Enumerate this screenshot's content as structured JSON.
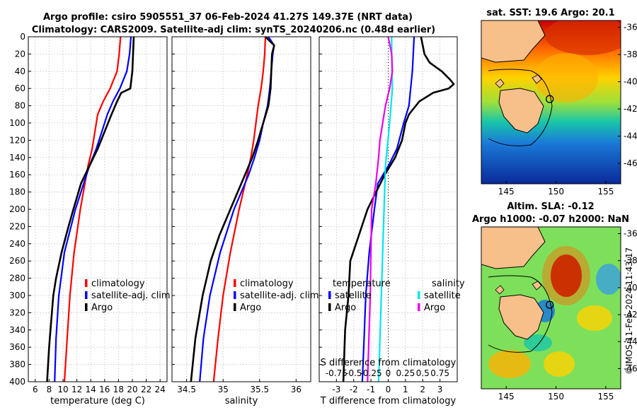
{
  "header": {
    "title_line1": "Argo profile: csiro 5905551_37 06-Feb-2024 41.27S 149.37E (NRT data)",
    "title_line2": "Climatology: CARS2009. Satellite-adj clim: synTS_20240206.nc (0.48d earlier)"
  },
  "colors": {
    "climatology": "#ff0000",
    "satellite": "#0000ff",
    "argo": "#000000",
    "temp_sat_diff": "#0000ff",
    "sal_sat_diff": "#00e5ee",
    "sal_argo_diff": "#ee00ee",
    "land": "#f7c08a"
  },
  "chart_data": [
    {
      "id": "temperature",
      "type": "line",
      "xlabel": "temperature (deg C)",
      "xlim": [
        5,
        25
      ],
      "xticks": [
        "6",
        "8",
        "10",
        "12",
        "14",
        "16",
        "18",
        "20",
        "22",
        "24"
      ],
      "ylim": [
        0,
        400
      ],
      "yticks": [
        "0",
        "20",
        "40",
        "60",
        "80",
        "100",
        "120",
        "140",
        "160",
        "180",
        "200",
        "220",
        "240",
        "260",
        "280",
        "300",
        "320",
        "340",
        "360",
        "380",
        "400"
      ],
      "legend": [
        "climatology",
        "satellite-adj. clim",
        "Argo"
      ],
      "series": [
        {
          "name": "climatology",
          "depth": [
            0,
            20,
            40,
            60,
            75,
            90,
            110,
            130,
            150,
            200,
            250,
            300,
            350,
            400
          ],
          "values": [
            18.3,
            18.1,
            17.8,
            16.8,
            15.8,
            15.0,
            14.6,
            14.2,
            13.6,
            12.5,
            11.6,
            11.0,
            10.6,
            10.2
          ]
        },
        {
          "name": "satellite-adj. clim",
          "depth": [
            0,
            20,
            40,
            60,
            75,
            90,
            110,
            130,
            150,
            200,
            250,
            300,
            350,
            400
          ],
          "values": [
            19.8,
            19.6,
            19.2,
            18.2,
            17.2,
            16.4,
            15.6,
            14.8,
            13.8,
            11.8,
            10.2,
            9.4,
            9.0,
            8.8
          ]
        },
        {
          "name": "Argo",
          "depth": [
            0,
            20,
            40,
            60,
            65,
            75,
            90,
            110,
            130,
            150,
            170,
            200,
            220,
            250,
            280,
            300,
            330,
            360,
            400
          ],
          "values": [
            20.2,
            20.1,
            20.0,
            19.7,
            18.4,
            17.8,
            17.0,
            16.0,
            15.0,
            13.8,
            12.6,
            11.5,
            10.8,
            9.8,
            9.0,
            8.6,
            8.3,
            8.0,
            7.7
          ]
        }
      ]
    },
    {
      "id": "salinity",
      "type": "line",
      "xlabel": "salinity",
      "xlim": [
        34.3,
        36.2
      ],
      "xticks": [
        "34.5",
        "35",
        "35.5",
        "36"
      ],
      "ylim": [
        0,
        400
      ],
      "legend": [
        "climatology",
        "satellite-adj. clim",
        "Argo"
      ],
      "series": [
        {
          "name": "climatology",
          "depth": [
            0,
            20,
            40,
            60,
            80,
            100,
            120,
            140,
            160,
            200,
            250,
            300,
            350,
            400
          ],
          "values": [
            35.58,
            35.57,
            35.55,
            35.52,
            35.48,
            35.45,
            35.42,
            35.38,
            35.33,
            35.22,
            35.1,
            35.0,
            34.93,
            34.87
          ]
        },
        {
          "name": "satellite-adj. clim",
          "depth": [
            0,
            10,
            20,
            40,
            60,
            80,
            100,
            120,
            140,
            160,
            200,
            250,
            300,
            350,
            400
          ],
          "values": [
            35.62,
            35.7,
            35.68,
            35.66,
            35.64,
            35.61,
            35.55,
            35.5,
            35.43,
            35.35,
            35.15,
            34.96,
            34.82,
            34.73,
            34.68
          ]
        },
        {
          "name": "Argo",
          "depth": [
            0,
            10,
            20,
            40,
            60,
            80,
            100,
            120,
            140,
            160,
            200,
            230,
            260,
            300,
            350,
            400
          ],
          "values": [
            35.58,
            35.7,
            35.67,
            35.66,
            35.65,
            35.62,
            35.55,
            35.48,
            35.4,
            35.3,
            35.1,
            34.95,
            34.83,
            34.72,
            34.62,
            34.56
          ]
        }
      ]
    },
    {
      "id": "differences",
      "type": "line",
      "xlabel": "T difference from climatology",
      "xlim": [
        -4,
        4
      ],
      "xticks": [
        "-3",
        "-2",
        "-1",
        "0",
        "1",
        "2",
        "3"
      ],
      "top_axis_label": "S difference from climatology",
      "top_xticks": [
        "-0.75",
        "-0.5",
        "-0.25",
        "0",
        "0.25",
        "0.5",
        "0.75"
      ],
      "ylim": [
        0,
        400
      ],
      "legend_temperature": {
        "title": "temperature",
        "entries": [
          "satellite",
          "Argo"
        ]
      },
      "legend_salinity": {
        "title": "salinity",
        "entries": [
          "satellite",
          "Argo"
        ]
      },
      "series": [
        {
          "name": "temperature satellite",
          "depth": [
            0,
            40,
            60,
            80,
            100,
            130,
            150,
            170,
            200,
            250,
            300,
            350,
            400
          ],
          "values": [
            1.5,
            1.4,
            1.3,
            1.2,
            0.9,
            0.5,
            0.0,
            -0.6,
            -0.8,
            -1.1,
            -1.3,
            -1.4,
            -1.5
          ]
        },
        {
          "name": "temperature Argo",
          "depth": [
            0,
            20,
            30,
            40,
            50,
            55,
            60,
            65,
            75,
            90,
            100,
            120,
            140,
            160,
            180,
            200,
            230,
            260,
            300,
            340,
            400
          ],
          "values": [
            1.9,
            2.1,
            2.4,
            3.1,
            3.6,
            3.8,
            3.5,
            2.6,
            1.8,
            1.2,
            1.0,
            0.8,
            0.4,
            -0.2,
            -0.7,
            -1.2,
            -1.7,
            -2.2,
            -2.3,
            -2.5,
            -2.6
          ]
        },
        {
          "name": "salinity satellite",
          "depth": [
            0,
            20,
            60,
            100,
            150,
            200,
            250,
            300,
            350,
            400
          ],
          "values": [
            0.05,
            0.05,
            0.06,
            0.02,
            -0.04,
            -0.06,
            -0.08,
            -0.1,
            -0.12,
            -0.14
          ]
        },
        {
          "name": "salinity Argo",
          "depth": [
            0,
            20,
            40,
            60,
            80,
            100,
            120,
            140,
            170,
            200,
            250,
            300,
            350,
            400
          ],
          "values": [
            0.0,
            0.05,
            0.06,
            0.02,
            -0.04,
            -0.08,
            -0.12,
            -0.14,
            -0.18,
            -0.24,
            -0.25,
            -0.26,
            -0.28,
            -0.3
          ]
        }
      ]
    },
    {
      "id": "sst_map",
      "type": "heatmap",
      "title": "sat. SST: 19.6 Argo: 20.1",
      "xlim": [
        142.5,
        156.5
      ],
      "ylim": [
        -47.5,
        -35.5
      ],
      "xticks": [
        "145",
        "150",
        "155"
      ],
      "yticks": [
        "-36",
        "-38",
        "-40",
        "-42",
        "-44",
        "-46"
      ],
      "argo_position": {
        "lon": 149.37,
        "lat": -41.27
      }
    },
    {
      "id": "sla_map",
      "type": "heatmap",
      "title_line1": "Altim. SLA: -0.12",
      "title_line2": "Argo h1000: -0.07 h2000: NaN",
      "xlim": [
        142.5,
        156.5
      ],
      "ylim": [
        -47.5,
        -35.5
      ],
      "xticks": [
        "145",
        "150",
        "155"
      ],
      "yticks": [
        "-36",
        "-38",
        "-40",
        "-42",
        "-44",
        "-46"
      ],
      "argo_position": {
        "lon": 149.37,
        "lat": -41.27
      }
    }
  ],
  "footer": {
    "watermark": "©IMOS 11-Feb-2024 11:43:17"
  }
}
